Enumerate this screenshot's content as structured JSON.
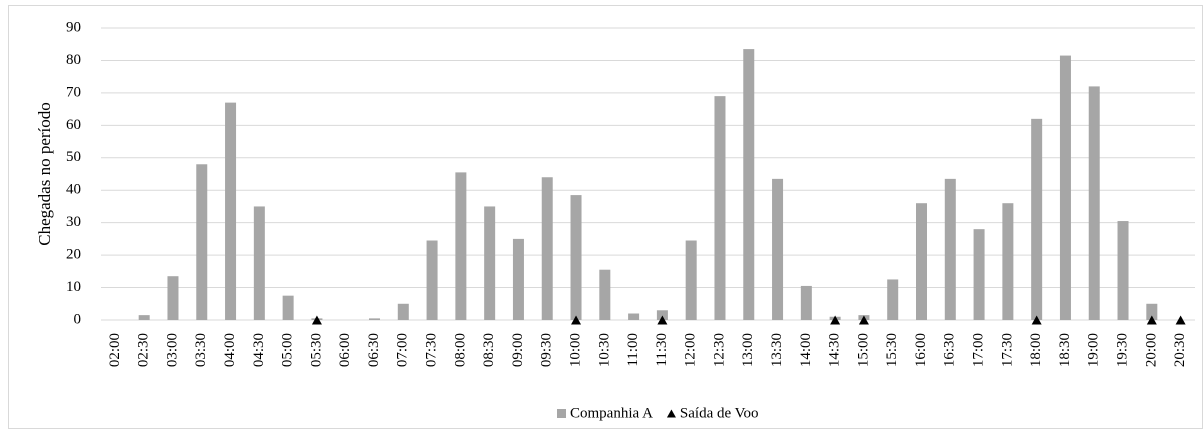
{
  "chart_data": {
    "type": "bar",
    "y_axis_label": "Chegadas no período",
    "categories": [
      "02:00",
      "02:30",
      "03:00",
      "03:30",
      "04:00",
      "04:30",
      "05:00",
      "05:30",
      "06:00",
      "06:30",
      "07:00",
      "07:30",
      "08:00",
      "08:30",
      "09:00",
      "09:30",
      "10:00",
      "10:30",
      "11:00",
      "11:30",
      "12:00",
      "12:30",
      "13:00",
      "13:30",
      "14:00",
      "14:30",
      "15:00",
      "15:30",
      "16:00",
      "16:30",
      "17:00",
      "17:30",
      "18:00",
      "18:30",
      "19:00",
      "19:30",
      "20:00",
      "20:30"
    ],
    "series": [
      {
        "name": "Companhia A",
        "color": "#a6a6a6",
        "marker": "bar",
        "values": [
          0,
          1.5,
          13.5,
          48,
          67,
          35,
          7.5,
          0.5,
          0,
          0.5,
          5,
          24.5,
          45.5,
          35,
          25,
          44,
          38.5,
          15.5,
          2,
          3,
          24.5,
          69,
          83.5,
          43.5,
          10.5,
          1,
          1.5,
          12.5,
          36,
          43.5,
          28,
          36,
          62,
          81.5,
          72,
          30.5,
          5,
          0
        ]
      },
      {
        "name": "Saída de Voo",
        "color": "#000000",
        "marker": "triangle",
        "values": [
          null,
          null,
          null,
          null,
          null,
          null,
          null,
          0,
          null,
          null,
          null,
          null,
          null,
          null,
          null,
          null,
          0,
          null,
          null,
          0,
          null,
          null,
          null,
          null,
          null,
          0,
          0,
          null,
          null,
          null,
          null,
          null,
          0,
          null,
          null,
          null,
          0,
          0
        ]
      }
    ],
    "ylim": [
      0,
      90
    ],
    "yticks": [
      0,
      10,
      20,
      30,
      40,
      50,
      60,
      70,
      80,
      90
    ],
    "grid": true,
    "legend": "bottom"
  }
}
